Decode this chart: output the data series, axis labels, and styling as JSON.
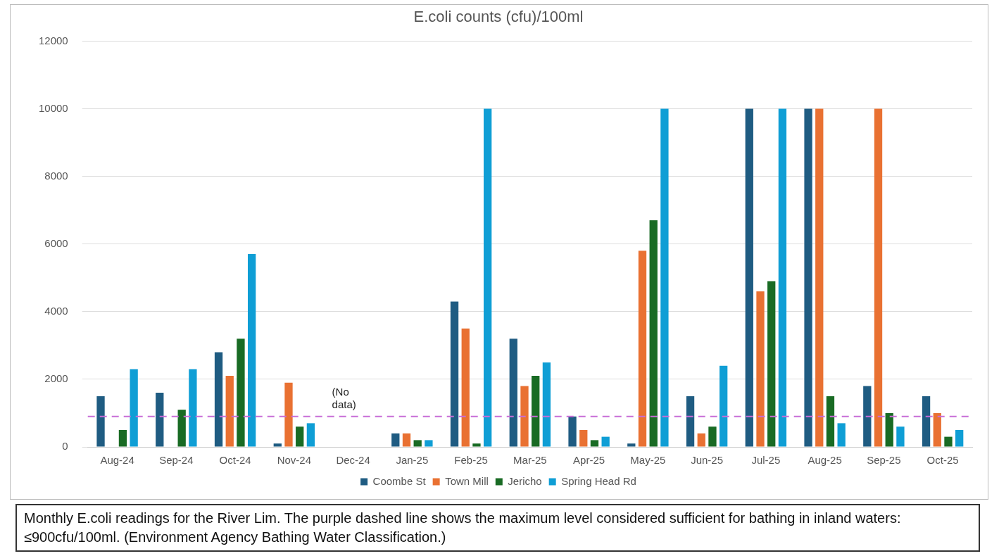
{
  "chart_data": {
    "type": "bar",
    "title": "E.coli counts (cfu)/100ml",
    "categories": [
      "Aug-24",
      "Sep-24",
      "Oct-24",
      "Nov-24",
      "Dec-24",
      "Jan-25",
      "Feb-25",
      "Mar-25",
      "Apr-25",
      "May-25",
      "Jun-25",
      "Jul-25",
      "Aug-25",
      "Sep-25",
      "Oct-25"
    ],
    "series": [
      {
        "name": "Coombe St",
        "color": "#1f5c82",
        "values": [
          1500,
          1600,
          2800,
          100,
          null,
          400,
          4300,
          3200,
          900,
          100,
          1500,
          10000,
          10000,
          1800,
          1500
        ]
      },
      {
        "name": "Town Mill",
        "color": "#e97132",
        "values": [
          null,
          null,
          2100,
          1900,
          null,
          400,
          3500,
          1800,
          500,
          5800,
          400,
          4600,
          10000,
          10000,
          1000
        ]
      },
      {
        "name": "Jericho",
        "color": "#196b24",
        "values": [
          500,
          1100,
          3200,
          600,
          null,
          200,
          100,
          2100,
          200,
          6700,
          600,
          4900,
          1500,
          1000,
          300
        ]
      },
      {
        "name": "Spring Head Rd",
        "color": "#0f9ed5",
        "values": [
          2300,
          2300,
          5700,
          700,
          null,
          200,
          10000,
          2500,
          300,
          10000,
          2400,
          10000,
          700,
          600,
          500
        ]
      }
    ],
    "ylim": [
      0,
      12000
    ],
    "yticks": [
      0,
      2000,
      4000,
      6000,
      8000,
      10000,
      12000
    ],
    "grid": "y",
    "legend": "bottom",
    "ref_lines": [
      {
        "axis": "y",
        "value": 900,
        "color": "#c86dd7",
        "line_style": "dashed"
      }
    ],
    "annotations": [
      "(No data)",
      "Monthly E.coli readings for the River Lim. The purple dashed line shows the maximum level considered sufficient for bathing in inland waters: ≤900cfu/100ml. (Environment Agency Bathing Water Classification.)"
    ]
  }
}
